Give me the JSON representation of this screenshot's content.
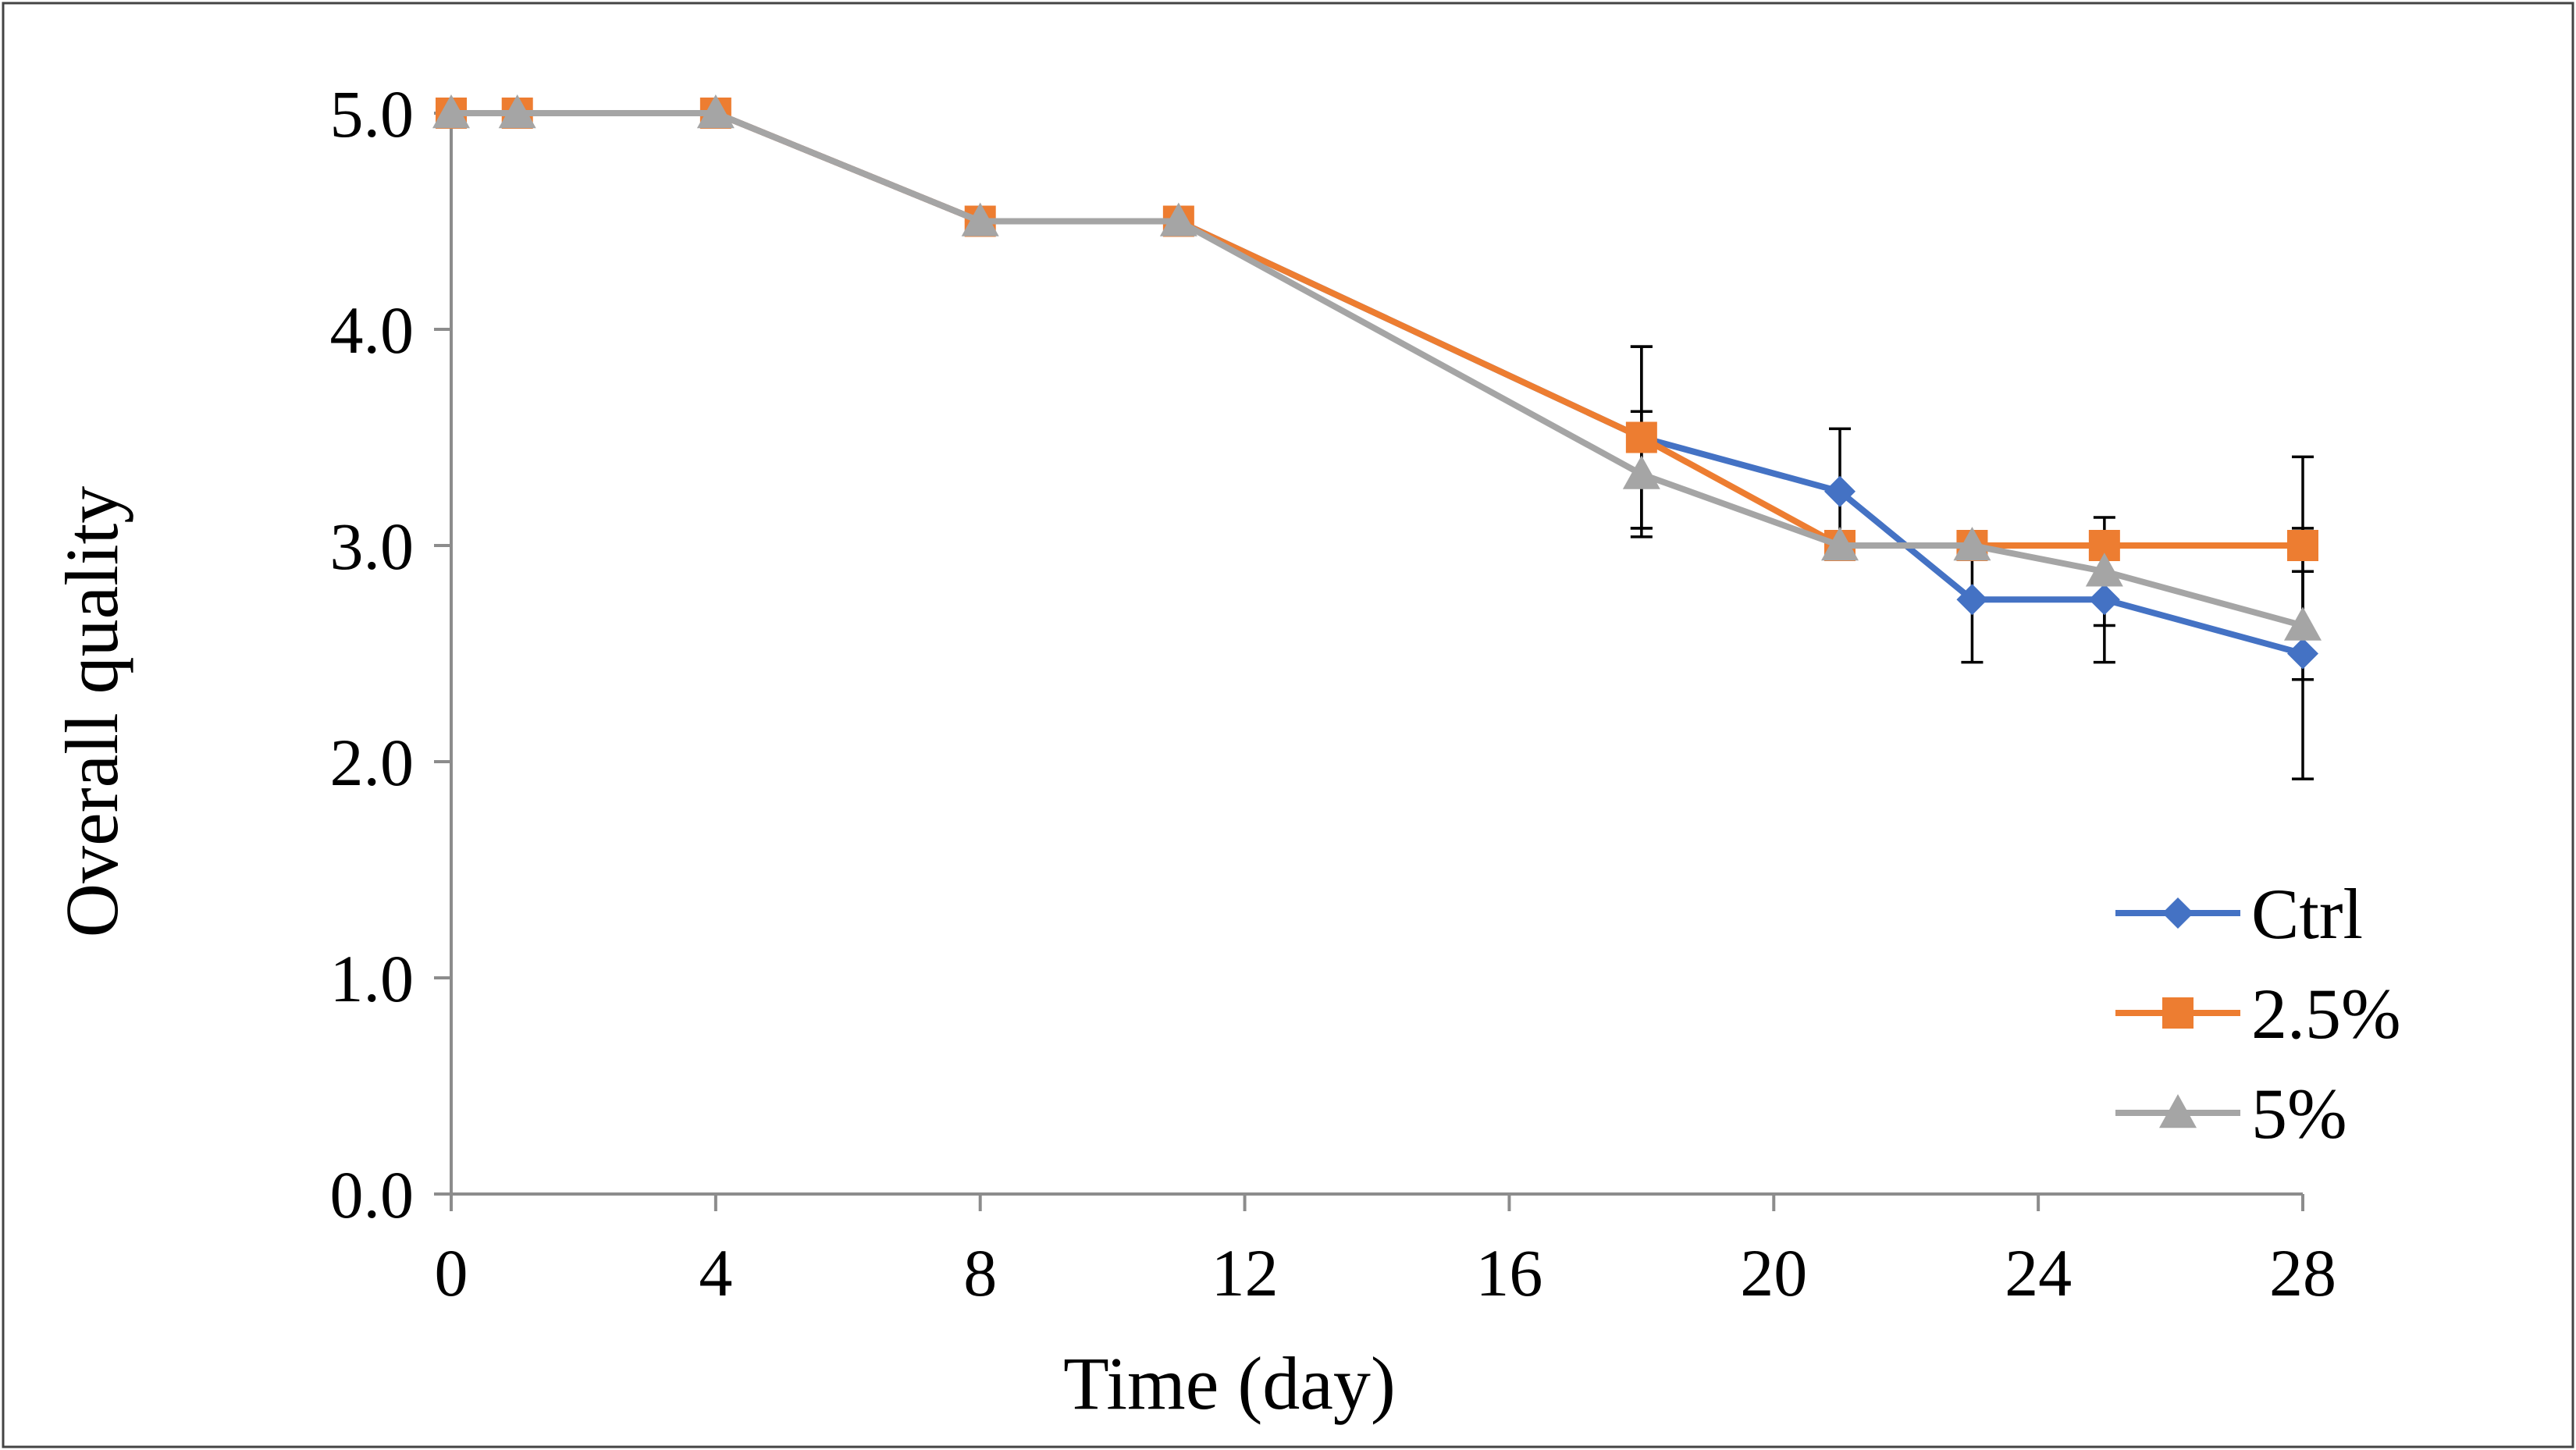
{
  "chart_data": {
    "type": "line",
    "title": "",
    "xlabel": "Time (day)",
    "ylabel": "Overall quality",
    "xlim": [
      0,
      28
    ],
    "ylim": [
      0,
      5
    ],
    "xticks": [
      0,
      4,
      8,
      12,
      16,
      20,
      24,
      28
    ],
    "xtick_labels": [
      "0",
      "4",
      "8",
      "12",
      "16",
      "20",
      "24",
      "28"
    ],
    "yticks": [
      0,
      1,
      2,
      3,
      4,
      5
    ],
    "ytick_labels": [
      "0.0",
      "1.0",
      "2.0",
      "3.0",
      "4.0",
      "5.0"
    ],
    "grid": false,
    "legend_position": "bottom-right",
    "x": [
      0,
      1,
      4,
      8,
      11,
      18,
      21,
      23,
      25,
      28
    ],
    "series": [
      {
        "name": "Ctrl",
        "color": "#4472C4",
        "marker": "diamond",
        "values": [
          5.0,
          5.0,
          5.0,
          4.5,
          4.5,
          3.5,
          3.25,
          2.75,
          2.75,
          2.5
        ],
        "errors": [
          0,
          0,
          0,
          0,
          0,
          0.42,
          0.29,
          0.29,
          0.29,
          0.58
        ]
      },
      {
        "name": "2.5%",
        "color": "#ED7D31",
        "marker": "square",
        "values": [
          5.0,
          5.0,
          5.0,
          4.5,
          4.5,
          3.5,
          3.0,
          3.0,
          3.0,
          3.0
        ],
        "errors": [
          0,
          0,
          0,
          0,
          0,
          0.42,
          0,
          0,
          0,
          0.41
        ]
      },
      {
        "name": "5%",
        "color": "#A5A5A5",
        "marker": "triangle",
        "values": [
          5.0,
          5.0,
          5.0,
          4.5,
          4.5,
          3.33,
          3.0,
          3.0,
          2.88,
          2.63
        ],
        "errors": [
          0,
          0,
          0,
          0,
          0,
          0.29,
          0,
          0,
          0.25,
          0.25
        ]
      }
    ]
  }
}
